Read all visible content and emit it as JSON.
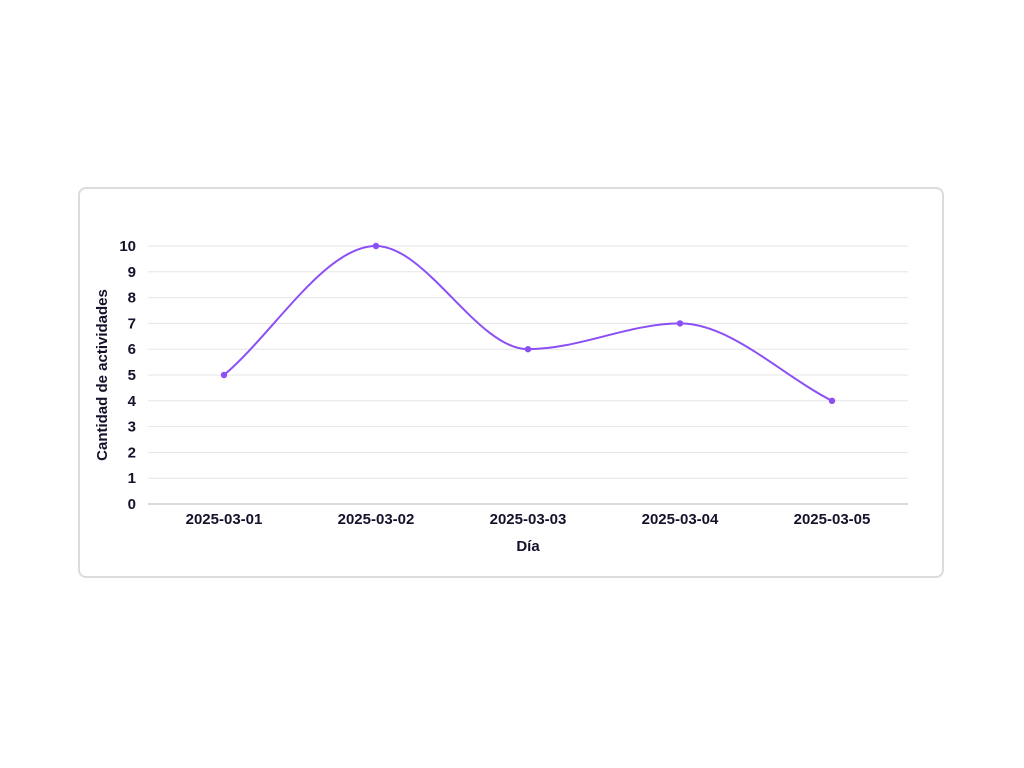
{
  "chart_data": {
    "type": "line",
    "categories": [
      "2025-03-01",
      "2025-03-02",
      "2025-03-03",
      "2025-03-04",
      "2025-03-05"
    ],
    "series": [
      {
        "values": [
          5,
          10,
          6,
          7,
          4
        ]
      }
    ],
    "xlabel": "Día",
    "ylabel": "Cantidad de actividades",
    "ylim": [
      0,
      10
    ],
    "yticks": [
      0,
      1,
      2,
      3,
      4,
      5,
      6,
      7,
      8,
      9,
      10
    ],
    "grid": true,
    "legend": false,
    "curve": "smooth",
    "line_color": "#8b4ff5",
    "text_color": "#14122b",
    "grid_color": "#e6e6e6"
  }
}
